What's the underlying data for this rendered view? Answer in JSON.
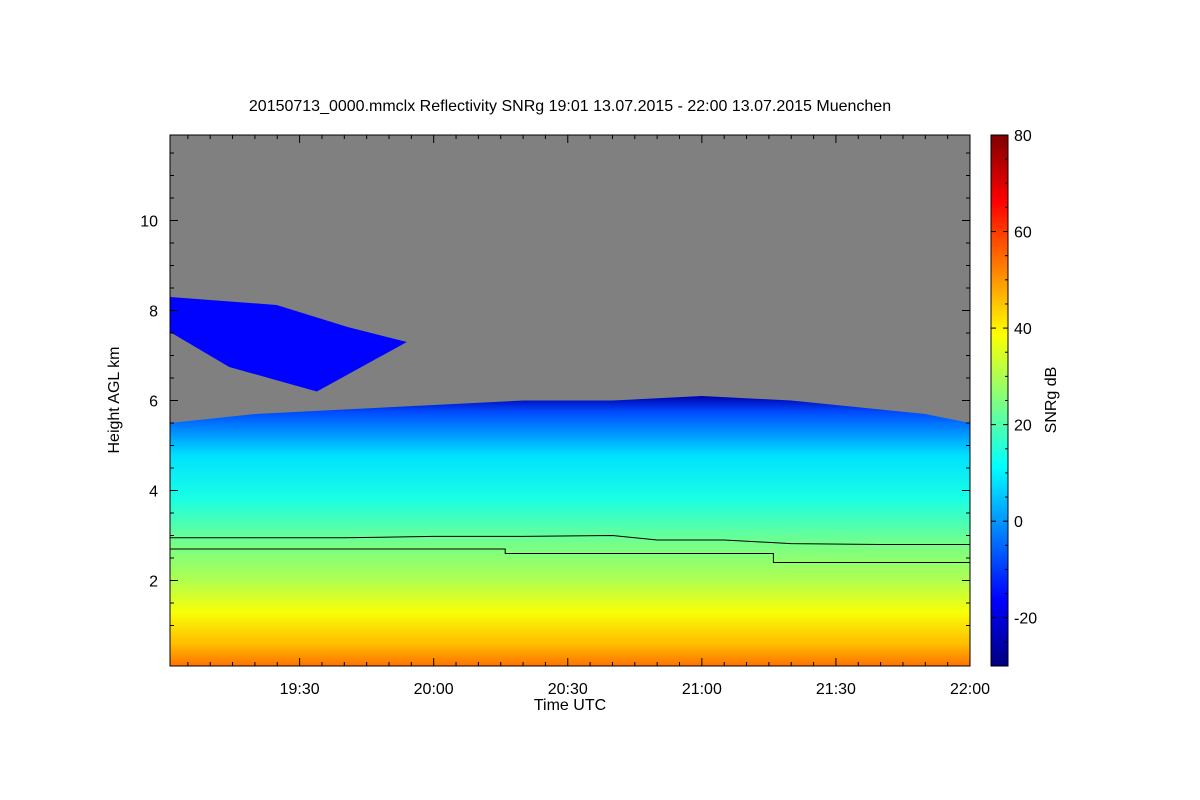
{
  "chart_data": {
    "type": "heatmap",
    "title": "20150713_0000.mmclx Reflectivity SNRg   19:01 13.07.2015 - 22:00 13.07.2015 Muenchen",
    "xlabel": "Time UTC",
    "ylabel": "Height AGL km",
    "colorbar_label": "SNRg dB",
    "x_range_minutes": [
      1141,
      1320
    ],
    "x_ticks": [
      {
        "minute": 1170,
        "label": "19:30"
      },
      {
        "minute": 1200,
        "label": "20:00"
      },
      {
        "minute": 1230,
        "label": "20:30"
      },
      {
        "minute": 1260,
        "label": "21:00"
      },
      {
        "minute": 1290,
        "label": "21:30"
      },
      {
        "minute": 1320,
        "label": "22:00"
      }
    ],
    "ylim": [
      0.1,
      11.9
    ],
    "y_ticks": [
      {
        "value": 2,
        "label": "2"
      },
      {
        "value": 4,
        "label": "4"
      },
      {
        "value": 6,
        "label": "6"
      },
      {
        "value": 8,
        "label": "8"
      },
      {
        "value": 10,
        "label": "10"
      }
    ],
    "colorbar_range": [
      -30,
      80
    ],
    "colorbar_ticks": [
      {
        "value": -20,
        "label": "-20"
      },
      {
        "value": 0,
        "label": "0"
      },
      {
        "value": 20,
        "label": "20"
      },
      {
        "value": 40,
        "label": "40"
      },
      {
        "value": 60,
        "label": "60"
      },
      {
        "value": 80,
        "label": "80"
      }
    ],
    "colormap": [
      "#00007f",
      "#0000ff",
      "#007fff",
      "#00ffff",
      "#7fff7f",
      "#ffff00",
      "#ff7f00",
      "#ff0000",
      "#7f0000"
    ],
    "background_color": "#808080",
    "grid": false,
    "legend": "colorbar-right",
    "cloud_top_km": [
      {
        "minute": 1141,
        "value": 5.5
      },
      {
        "minute": 1160,
        "value": 5.7
      },
      {
        "minute": 1180,
        "value": 5.8
      },
      {
        "minute": 1200,
        "value": 5.9
      },
      {
        "minute": 1220,
        "value": 6.0
      },
      {
        "minute": 1240,
        "value": 6.0
      },
      {
        "minute": 1260,
        "value": 6.1
      },
      {
        "minute": 1280,
        "value": 6.0
      },
      {
        "minute": 1300,
        "value": 5.8
      },
      {
        "minute": 1310,
        "value": 5.7
      },
      {
        "minute": 1320,
        "value": 5.5
      }
    ],
    "upper_cloud": {
      "minute_start": 1141,
      "minute_end": 1194,
      "height_min_km": 6.2,
      "height_max_km": 8.3
    },
    "line_series": [
      {
        "points": [
          {
            "minute": 1141,
            "value": 2.95
          },
          {
            "minute": 1180,
            "value": 2.95
          },
          {
            "minute": 1200,
            "value": 2.98
          },
          {
            "minute": 1220,
            "value": 2.98
          },
          {
            "minute": 1240,
            "value": 3.0
          },
          {
            "minute": 1250,
            "value": 2.9
          },
          {
            "minute": 1265,
            "value": 2.9
          },
          {
            "minute": 1280,
            "value": 2.82
          },
          {
            "minute": 1300,
            "value": 2.8
          },
          {
            "minute": 1320,
            "value": 2.8
          }
        ]
      },
      {
        "points": [
          {
            "minute": 1141,
            "value": 2.7
          },
          {
            "minute": 1216,
            "value": 2.7
          },
          {
            "minute": 1216,
            "value": 2.6
          },
          {
            "minute": 1276,
            "value": 2.6
          },
          {
            "minute": 1276,
            "value": 2.4
          },
          {
            "minute": 1320,
            "value": 2.4
          }
        ]
      }
    ]
  }
}
